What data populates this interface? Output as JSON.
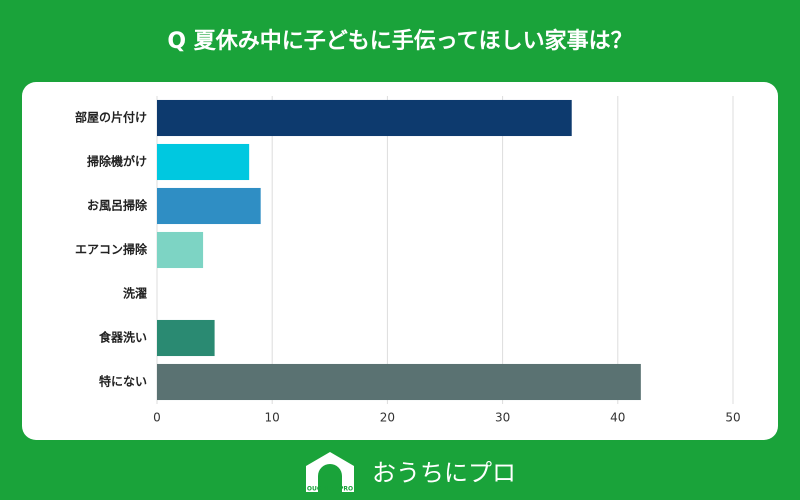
{
  "chart_data": {
    "type": "hbar",
    "title": "Q 夏休み中に子どもに手伝ってほしい家事は？",
    "categories": [
      "部屋の片付け",
      "掃除機がけ",
      "お風呂掃除",
      "エアコン掃除",
      "洗濯",
      "食器洗い",
      "特にない"
    ],
    "values": [
      36,
      8,
      9,
      4,
      0,
      5,
      42
    ],
    "colors": [
      "#0d3a6e",
      "#00c8e0",
      "#2f8ec4",
      "#7dd4c4",
      "#4fb79c",
      "#2a8a72",
      "#5a7272"
    ],
    "xlim": [
      0,
      50
    ],
    "xticks": [
      0,
      10,
      20,
      30,
      40,
      50
    ],
    "grid": true
  },
  "brand": {
    "name": "おうちにプロ",
    "mark": "OUCHI ni PRO"
  }
}
